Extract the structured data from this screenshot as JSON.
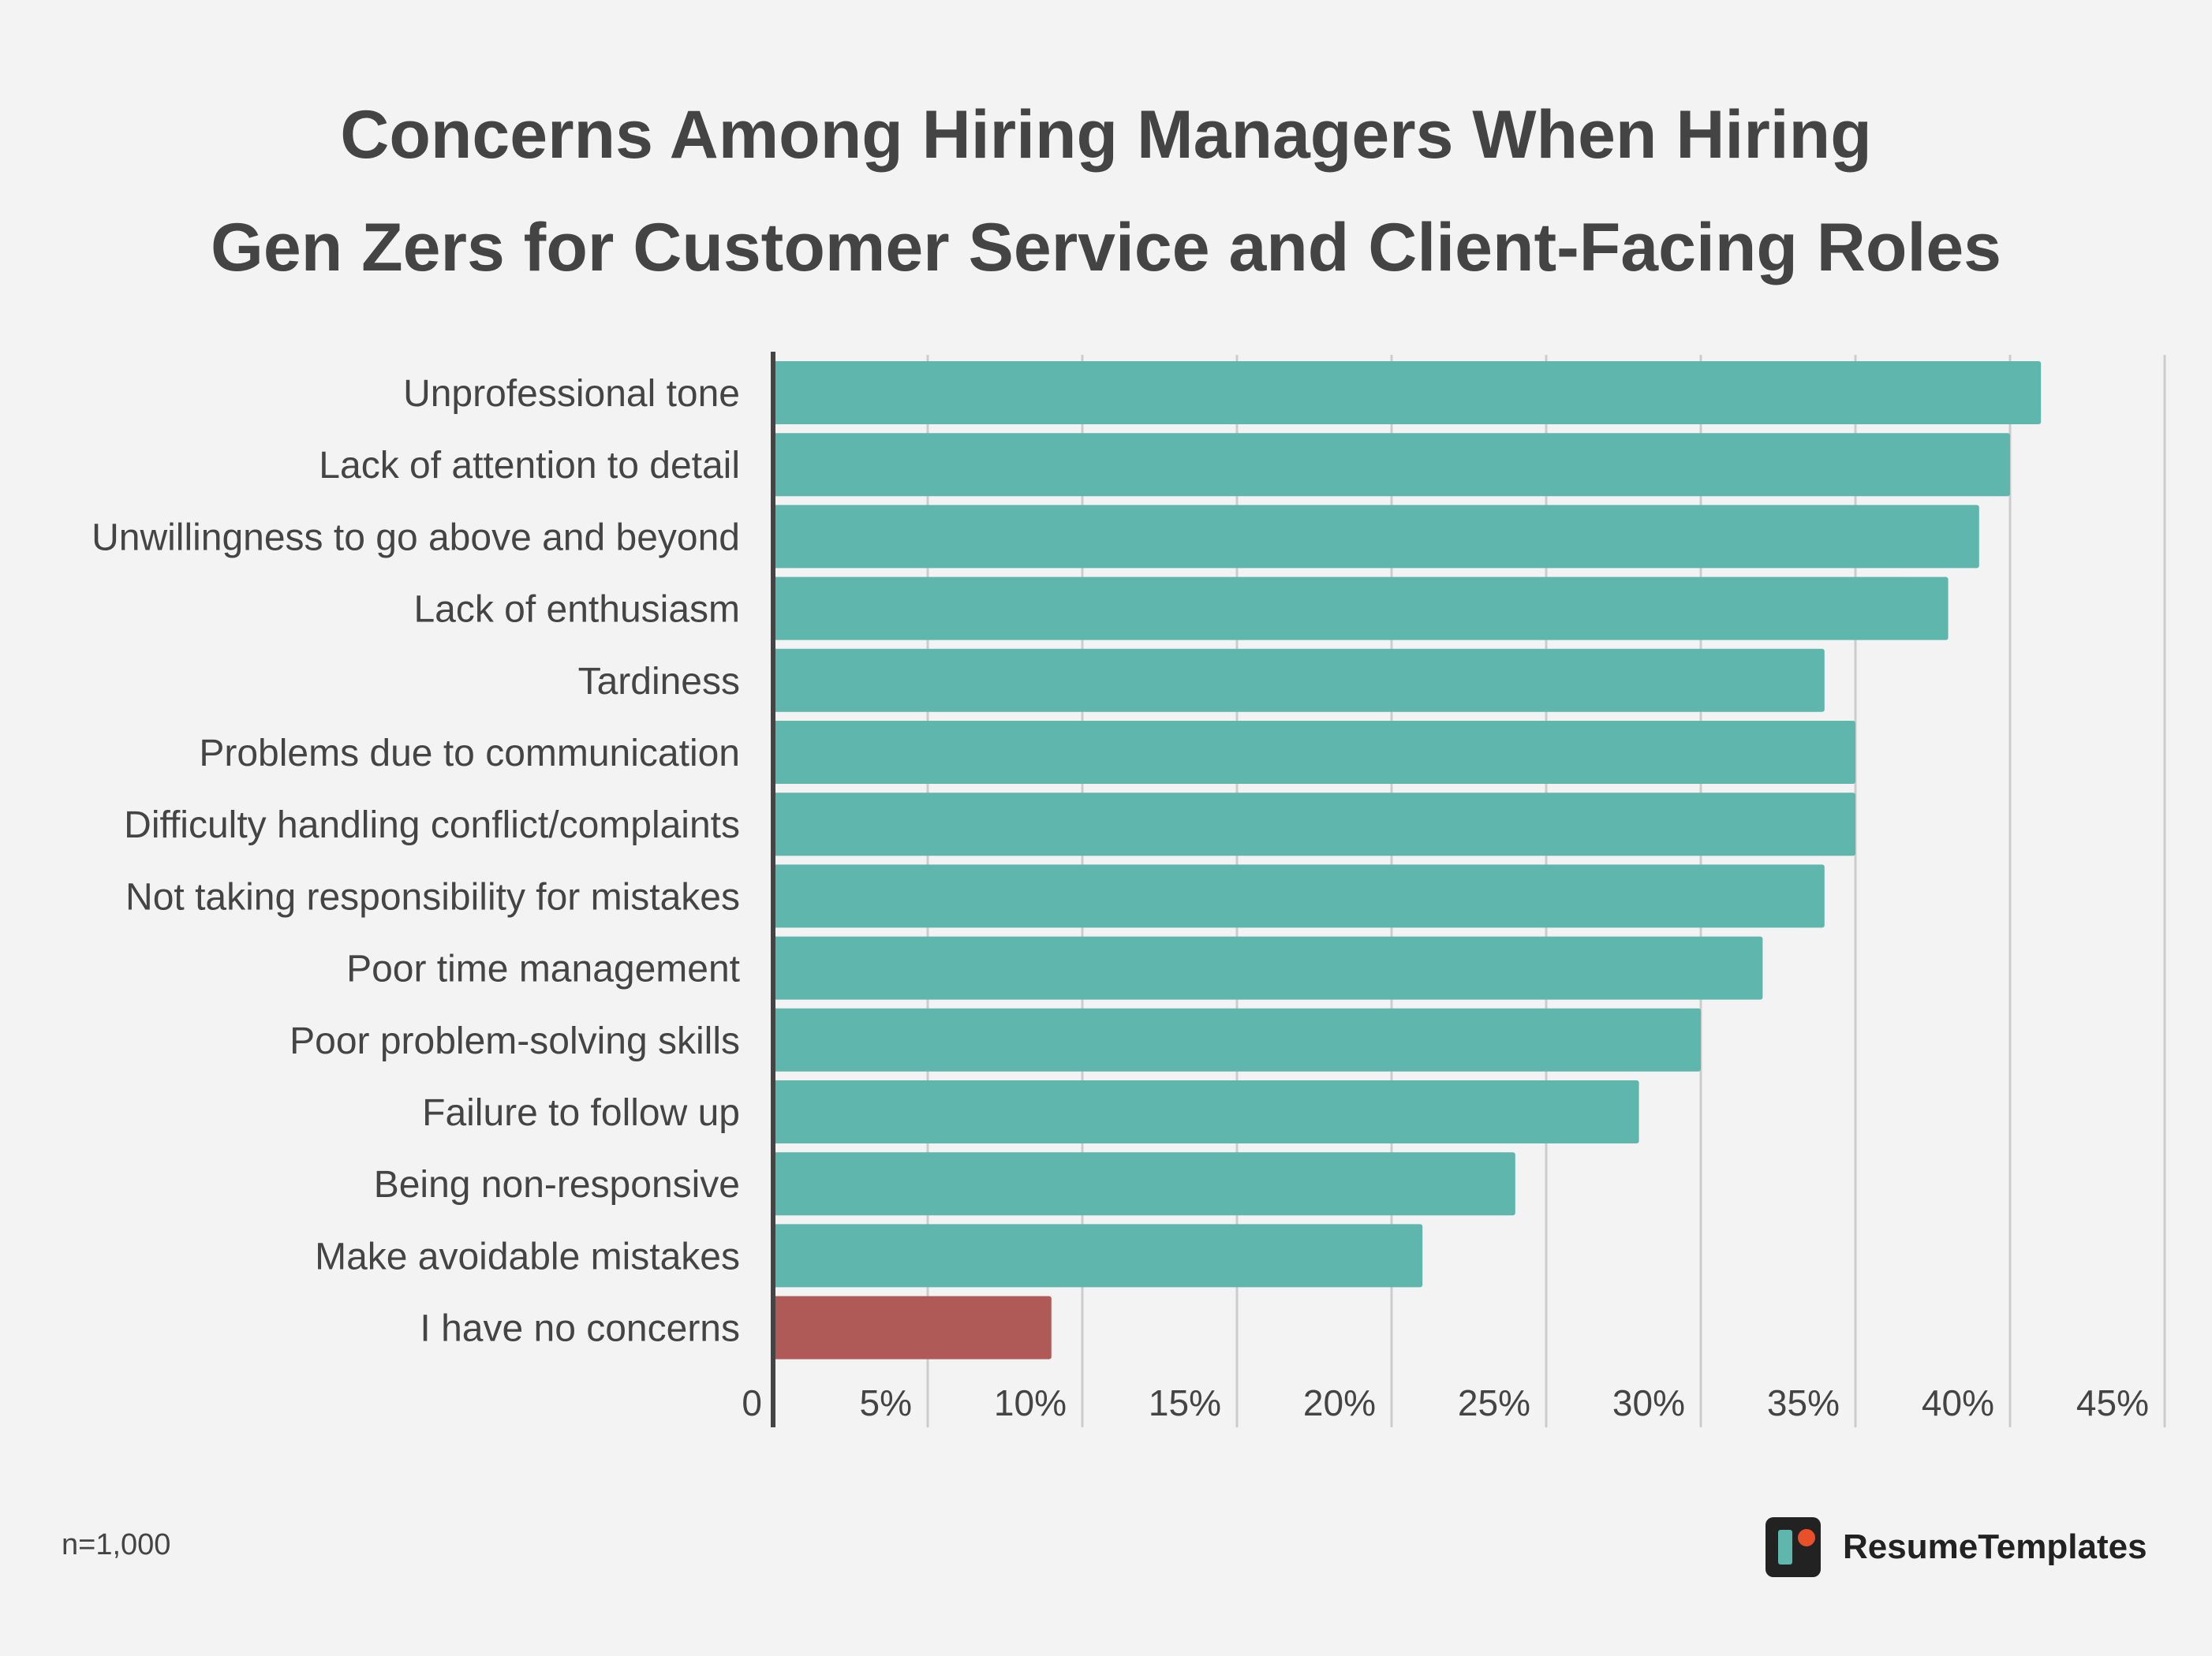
{
  "colors": {
    "bar": "#5eb6ad",
    "highlight_bar": "#b05a57",
    "grid": "#cccccc",
    "axis": "#444444",
    "text": "#444444"
  },
  "chart_data": {
    "type": "bar",
    "orientation": "horizontal",
    "title_lines": [
      "Concerns Among Hiring Managers When Hiring",
      "Gen Zers for Customer Service and Client-Facing Roles"
    ],
    "xlabel": "",
    "ylabel": "",
    "categories": [
      "Unprofessional tone",
      "Lack of attention to detail",
      "Unwillingness to go above and beyond",
      "Lack of enthusiasm",
      "Tardiness",
      "Problems due to communication",
      "Difficulty handling conflict/complaints",
      "Not taking responsibility for mistakes",
      "Poor time management",
      "Poor problem-solving skills",
      "Failure to follow up",
      "Being non-responsive",
      "Make avoidable mistakes",
      "I have no concerns"
    ],
    "values": [
      41,
      40,
      39,
      38,
      34,
      35,
      35,
      34,
      32,
      30,
      28,
      24,
      21,
      9
    ],
    "highlight_index": 13,
    "xlim": [
      0,
      45
    ],
    "xticks": [
      0,
      5,
      10,
      15,
      20,
      25,
      30,
      35,
      40,
      45
    ],
    "xtick_labels": [
      "0",
      "5%",
      "10%",
      "15%",
      "20%",
      "25%",
      "30%",
      "35%",
      "40%",
      "45%"
    ],
    "grid": true,
    "legend": "none"
  },
  "footer": {
    "sample_note": "n=1,000",
    "brand_name": "ResumeTemplates",
    "brand_icon": "resumetemplates-logo-icon"
  }
}
